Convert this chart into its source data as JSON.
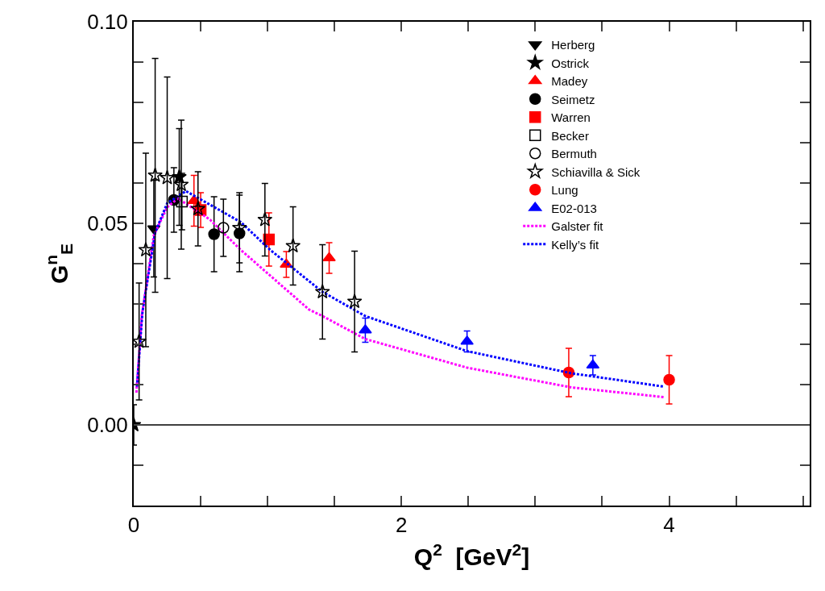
{
  "chart_data": {
    "type": "scatter",
    "xlabel": "Q$^{2}$  [GeV$^{2}$]",
    "ylabel": "G$^{n}$$_{E}$",
    "xlim": [
      0,
      5.05
    ],
    "ylim": [
      -0.02,
      0.1
    ],
    "xticks": [
      0,
      {
        "value": 0.5,
        "label": null
      },
      {
        "value": 1,
        "label": null
      },
      {
        "value": 1.5,
        "label": null
      },
      2,
      {
        "value": 2.5,
        "label": null
      },
      {
        "value": 3,
        "label": null
      },
      {
        "value": 3.5,
        "label": null
      },
      4,
      {
        "value": 4.5,
        "label": null
      },
      {
        "value": 5,
        "label": null
      }
    ],
    "yticks": [
      {
        "value": -0.01,
        "label": null
      },
      {
        "value": 0,
        "label": "0.00"
      },
      {
        "value": 0.01,
        "label": null
      },
      {
        "value": 0.02,
        "label": null
      },
      {
        "value": 0.03,
        "label": null
      },
      {
        "value": 0.04,
        "label": null
      },
      0.05,
      {
        "value": 0.06,
        "label": null
      },
      {
        "value": 0.07,
        "label": null
      },
      {
        "value": 0.08,
        "label": null
      },
      {
        "value": 0.09,
        "label": null
      },
      {
        "value": 0.1,
        "label": "0.10"
      }
    ],
    "grid": false,
    "legend": "top right",
    "ref_lines": [
      {
        "axis": "y",
        "value": 0,
        "color": "#000000"
      }
    ],
    "series": [
      {
        "name": "Herberg",
        "color": "#000000",
        "marker": "triangle-down",
        "x": [
          0.15
        ],
        "values": [
          0.0487
        ],
        "errors": [
          0.012
        ]
      },
      {
        "name": "Ostrick",
        "color": "#000000",
        "marker": "star",
        "x": [
          0,
          0.34
        ],
        "values": [
          0,
          0.0615
        ],
        "errors": [
          0.005,
          0.012
        ]
      },
      {
        "name": "Madey",
        "color": "#ff0000",
        "marker": "triangle",
        "x": [
          0.45,
          1.14,
          1.46
        ],
        "values": [
          0.0556,
          0.0398,
          0.0414
        ],
        "errors": [
          0.0063,
          0.0032,
          0.0038
        ]
      },
      {
        "name": "Seimetz",
        "color": "#000000",
        "marker": "circle",
        "x": [
          0.3,
          0.6,
          0.79
        ],
        "values": [
          0.0558,
          0.0473,
          0.0475
        ],
        "errors": [
          0.008,
          0.0093,
          0.0095
        ]
      },
      {
        "name": "Warren",
        "color": "#ff0000",
        "marker": "square",
        "x": [
          0.5,
          1.01
        ],
        "values": [
          0.0533,
          0.046
        ],
        "errors": [
          0.0043,
          0.0066
        ]
      },
      {
        "name": "Becker",
        "color": "#000000",
        "marker": "square-open",
        "x": [
          0.36
        ],
        "values": [
          0.0554
        ],
        "errors": [
          0.007
        ]
      },
      {
        "name": "Bermuth",
        "color": "#000000",
        "marker": "circle-open",
        "x": [
          0.67
        ],
        "values": [
          0.0489
        ],
        "errors": [
          0.0071
        ]
      },
      {
        "name": "Schiavilla & Sick",
        "color": "#000000",
        "marker": "star-open",
        "x": [
          0.04,
          0.09,
          0.16,
          0.25,
          0.355,
          0.48,
          0.79,
          0.98,
          1.19,
          1.41,
          1.65
        ],
        "values": [
          0.0207,
          0.0434,
          0.0619,
          0.0613,
          0.0596,
          0.0536,
          0.0489,
          0.0509,
          0.0444,
          0.033,
          0.0306
        ],
        "errors": [
          0.0145,
          0.024,
          0.029,
          0.025,
          0.016,
          0.0092,
          0.0087,
          0.009,
          0.0097,
          0.0117,
          0.0125
        ]
      },
      {
        "name": "Lung",
        "color": "#ff0000",
        "marker": "circle",
        "x": [
          3.25,
          4.0
        ],
        "values": [
          0.013,
          0.0112
        ],
        "errors": [
          0.006,
          0.006
        ]
      },
      {
        "name": "E02-013",
        "color": "#0000ff",
        "marker": "triangle",
        "x": [
          1.73,
          2.49,
          3.43
        ],
        "values": [
          0.0235,
          0.0207,
          0.0148
        ],
        "errors": [
          0.003,
          0.0026,
          0.0024
        ]
      },
      {
        "name": "Galster fit",
        "color": "#ff00ff",
        "type": "line",
        "line_style": "dotted",
        "marker": "none",
        "x": [
          0.02,
          0.06,
          0.15,
          0.25,
          0.33,
          0.57,
          0.8,
          1.31,
          1.41,
          1.73,
          2.49,
          3.27,
          3.96
        ],
        "values": [
          0.008,
          0.027,
          0.047,
          0.054,
          0.0562,
          0.0509,
          0.0434,
          0.0286,
          0.027,
          0.0213,
          0.0142,
          0.0093,
          0.0069
        ]
      },
      {
        "name": "Kelly’s fit",
        "color": "#0000ff",
        "type": "line",
        "line_style": "dotted",
        "marker": "none",
        "x": [
          0.024,
          0.065,
          0.16,
          0.25,
          0.39,
          0.8,
          1.02,
          1.41,
          1.73,
          2.49,
          3.27,
          3.96
        ],
        "values": [
          0.0095,
          0.028,
          0.0477,
          0.055,
          0.058,
          0.0503,
          0.0434,
          0.033,
          0.027,
          0.0183,
          0.0128,
          0.0095
        ]
      }
    ]
  }
}
